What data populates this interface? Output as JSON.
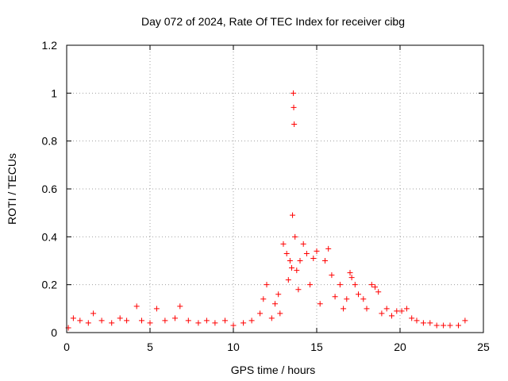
{
  "chart_data": {
    "type": "scatter",
    "title": "Day 072 of 2024, Rate Of TEC Index for receiver cibg",
    "xlabel": "GPS time / hours",
    "ylabel": "ROTI / TECUs",
    "xlim": [
      0,
      25
    ],
    "ylim": [
      0,
      1.2
    ],
    "xticks": [
      "0",
      "5",
      "10",
      "15",
      "20",
      "25"
    ],
    "yticks": [
      "0",
      "0.2",
      "0.4",
      "0.6",
      "0.8",
      "1",
      "1.2"
    ],
    "grid": true,
    "marker": "plus",
    "color": "#ff0000",
    "series": [
      {
        "x": [
          0.1,
          0.4,
          0.8,
          1.3,
          1.6,
          2.1,
          2.7,
          3.2,
          3.6,
          4.2,
          4.5,
          5.0,
          5.4,
          5.9,
          6.5,
          6.8,
          7.3,
          7.9,
          8.4,
          8.9,
          9.5,
          10.0,
          10.6,
          11.1,
          11.6,
          11.8,
          12.0,
          12.3,
          12.5,
          12.7,
          12.8,
          13.0,
          13.2,
          13.3,
          13.4,
          13.5,
          13.55,
          13.6,
          13.62,
          13.65,
          13.7,
          13.8,
          13.9,
          14.0,
          14.2,
          14.4,
          14.6,
          14.8,
          15.0,
          15.2,
          15.5,
          15.7,
          15.9,
          16.1,
          16.4,
          16.6,
          16.8,
          17.0,
          17.1,
          17.3,
          17.5,
          17.8,
          18.0,
          18.3,
          18.5,
          18.7,
          18.9,
          19.2,
          19.5,
          19.8,
          20.1,
          20.4,
          20.7,
          21.0,
          21.4,
          21.8,
          22.2,
          22.6,
          23.0,
          23.5,
          23.9
        ],
        "y": [
          0.02,
          0.06,
          0.05,
          0.04,
          0.08,
          0.05,
          0.04,
          0.06,
          0.05,
          0.11,
          0.05,
          0.04,
          0.1,
          0.05,
          0.06,
          0.11,
          0.05,
          0.04,
          0.05,
          0.04,
          0.05,
          0.03,
          0.04,
          0.05,
          0.08,
          0.14,
          0.2,
          0.06,
          0.12,
          0.16,
          0.08,
          0.37,
          0.33,
          0.22,
          0.3,
          0.27,
          0.49,
          1.0,
          0.94,
          0.87,
          0.4,
          0.26,
          0.18,
          0.3,
          0.37,
          0.33,
          0.2,
          0.31,
          0.34,
          0.12,
          0.3,
          0.35,
          0.24,
          0.15,
          0.2,
          0.1,
          0.14,
          0.25,
          0.23,
          0.2,
          0.16,
          0.14,
          0.1,
          0.2,
          0.19,
          0.17,
          0.08,
          0.1,
          0.07,
          0.09,
          0.09,
          0.1,
          0.06,
          0.05,
          0.04,
          0.04,
          0.03,
          0.03,
          0.03,
          0.03,
          0.05
        ]
      }
    ]
  }
}
